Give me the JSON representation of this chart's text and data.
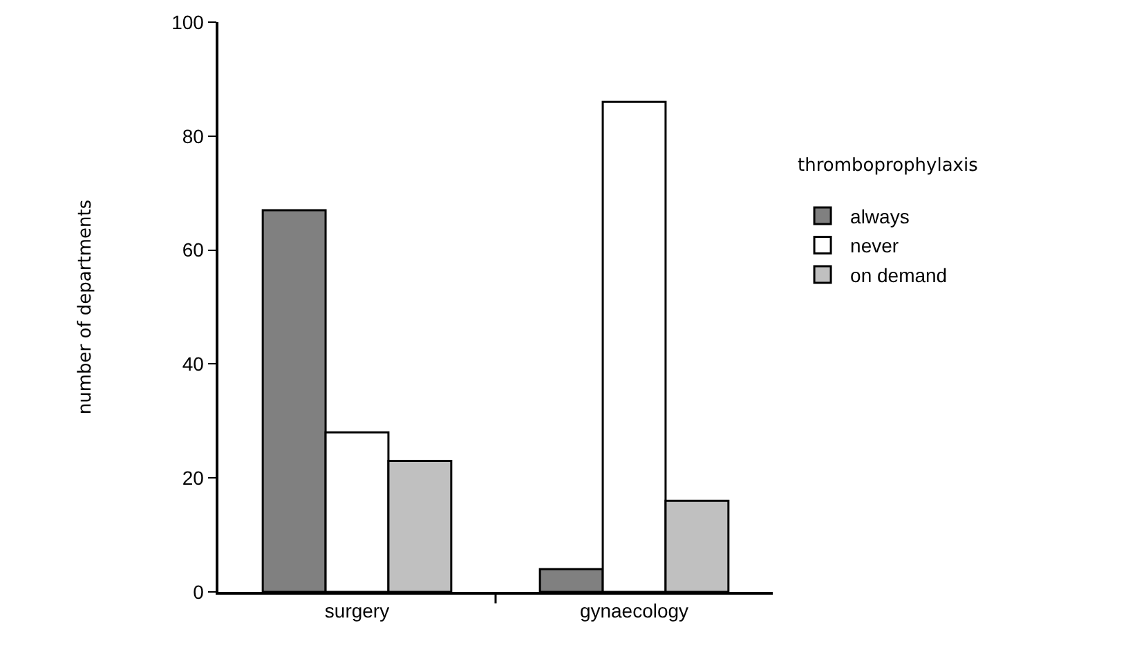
{
  "chart_data": {
    "type": "bar",
    "ylabel": "number of departments",
    "legend_title": "thromboprophylaxis",
    "categories": [
      "surgery",
      "gynaecology"
    ],
    "series": [
      {
        "name": "always",
        "color": "#808080",
        "values": [
          67,
          4
        ]
      },
      {
        "name": "never",
        "color": "#ffffff",
        "values": [
          28,
          86
        ]
      },
      {
        "name": "on demand",
        "color": "#c0c0c0",
        "values": [
          23,
          16
        ]
      }
    ],
    "ylim": [
      0,
      100
    ],
    "yticks": [
      0,
      20,
      40,
      60,
      80,
      100
    ],
    "grid": false,
    "legend": "right"
  }
}
